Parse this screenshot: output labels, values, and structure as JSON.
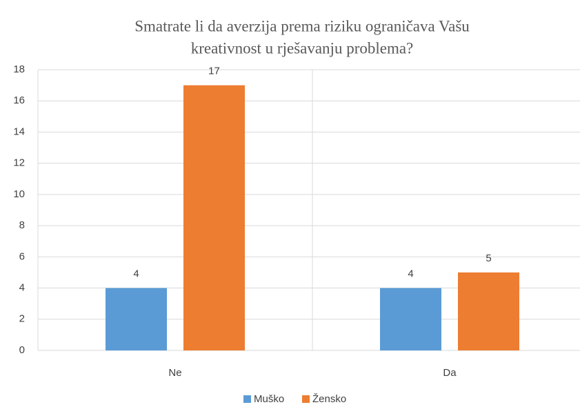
{
  "chart_data": {
    "type": "bar",
    "title": [
      "Smatrate li da averzija prema riziku ograničava Vašu",
      "kreativnost u rješavanju problema?"
    ],
    "categories": [
      "Ne",
      "Da"
    ],
    "series": [
      {
        "name": "Muško",
        "color": "#5b9bd5",
        "values": [
          4,
          4
        ]
      },
      {
        "name": "Žensko",
        "color": "#ed7d31",
        "values": [
          17,
          5
        ]
      }
    ],
    "ylim": [
      0,
      18
    ],
    "yticks": [
      0,
      2,
      4,
      6,
      8,
      10,
      12,
      14,
      16,
      18
    ],
    "grid": true,
    "legend": "bottom",
    "data_labels": true
  }
}
